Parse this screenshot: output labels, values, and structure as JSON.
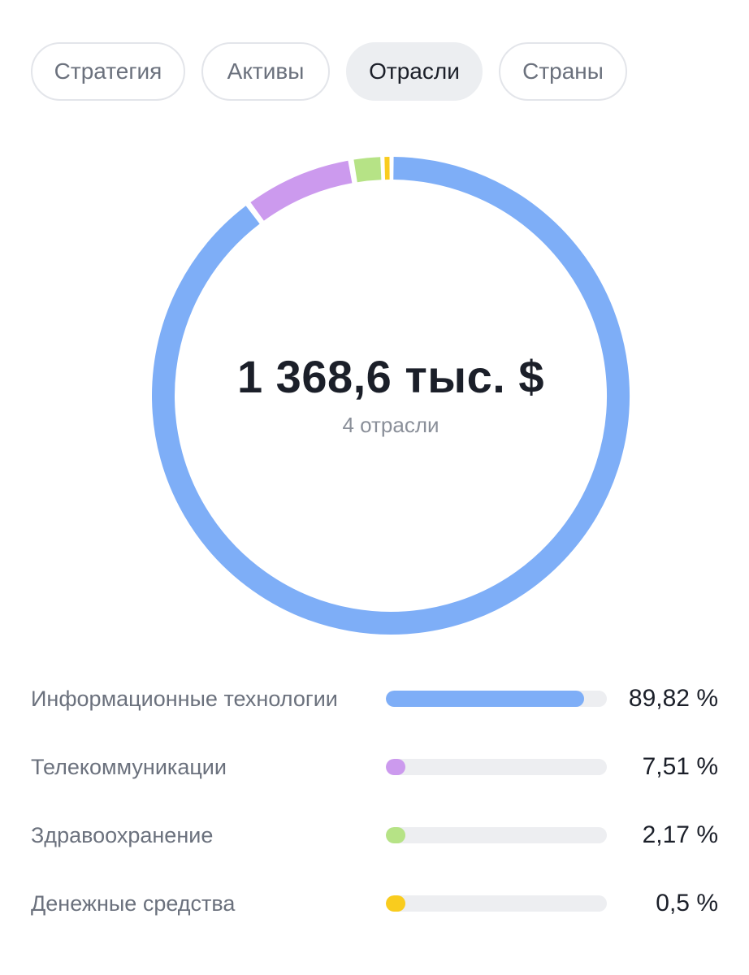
{
  "tabs": [
    {
      "label": "Стратегия",
      "active": false
    },
    {
      "label": "Активы",
      "active": false
    },
    {
      "label": "Отрасли",
      "active": true
    },
    {
      "label": "Страны",
      "active": false
    }
  ],
  "summary": {
    "total": "1 368,6 тыс. $",
    "subtitle": "4 отрасли"
  },
  "chart_data": {
    "type": "pie",
    "categories": [
      "Информационные технологии",
      "Телекоммуникации",
      "Здравоохранение",
      "Денежные средства"
    ],
    "values": [
      89.82,
      7.51,
      2.17,
      0.5
    ],
    "colors": [
      "#7eaef7",
      "#cc9aee",
      "#b6e386",
      "#f9cc1e"
    ]
  },
  "legend": [
    {
      "label": "Информационные технологии",
      "value": "89,82 %",
      "fraction": 0.8982,
      "color": "#7eaef7"
    },
    {
      "label": "Телекоммуникации",
      "value": "7,51 %",
      "fraction": 0.0751,
      "color": "#cc9aee"
    },
    {
      "label": "Здравоохранение",
      "value": "2,17 %",
      "fraction": 0.0217,
      "color": "#b6e386"
    },
    {
      "label": "Денежные средства",
      "value": "0,5 %",
      "fraction": 0.005,
      "color": "#f9cc1e"
    }
  ]
}
